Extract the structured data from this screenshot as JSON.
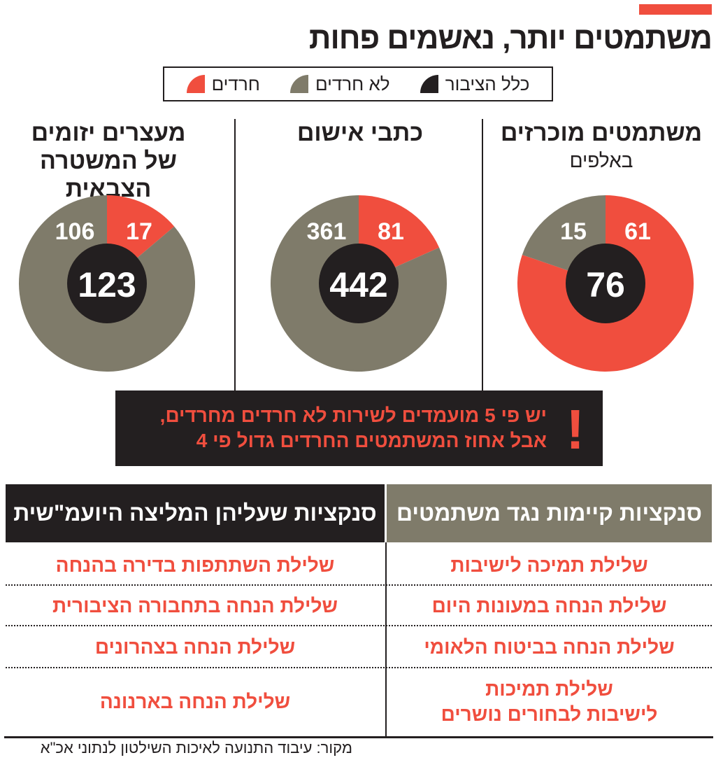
{
  "title": "משתמטים יותר, נאשמים פחות",
  "legend": [
    {
      "label": "חרדים",
      "color": "#f04e3e"
    },
    {
      "label": "לא חרדים",
      "color": "#7f7b6a"
    },
    {
      "label": "כלל הציבור",
      "color": "#231f20"
    }
  ],
  "columns": [
    {
      "title": "משתמטים מוכרזים",
      "subtitle": "באלפים"
    },
    {
      "title": "כתבי אישום",
      "subtitle": ""
    },
    {
      "title": "מעצרים יזומים של המשטרה הצבאית",
      "subtitle": ""
    }
  ],
  "chart_data": [
    {
      "type": "pie",
      "variant": "donut",
      "title": "משתמטים מוכרזים",
      "unit": "באלפים",
      "categories": [
        "חרדים",
        "לא חרדים"
      ],
      "values": [
        61,
        15
      ],
      "total": 76,
      "colors": [
        "#f04e3e",
        "#7f7b6a"
      ],
      "center_color": "#231f20"
    },
    {
      "type": "pie",
      "variant": "donut",
      "title": "כתבי אישום",
      "categories": [
        "חרדים",
        "לא חרדים"
      ],
      "values": [
        81,
        361
      ],
      "total": 442,
      "colors": [
        "#f04e3e",
        "#7f7b6a"
      ],
      "center_color": "#231f20"
    },
    {
      "type": "pie",
      "variant": "donut",
      "title": "מעצרים יזומים של המשטרה הצבאית",
      "categories": [
        "חרדים",
        "לא חרדים"
      ],
      "values": [
        17,
        106
      ],
      "total": 123,
      "colors": [
        "#f04e3e",
        "#7f7b6a"
      ],
      "center_color": "#231f20"
    }
  ],
  "alert": {
    "mark": "!",
    "line1": "יש פי 5 מועמדים לשירות לא חרדים מחרדים,",
    "line2": "אבל אחוז המשתמטים החרדים גדול פי 4"
  },
  "table": {
    "headers": [
      "סנקציות קיימות נגד משתמטים",
      "סנקציות שעליהן המליצה היועמ\"שית"
    ],
    "rows": [
      [
        "שלילת תמיכה לישיבות",
        "שלילת השתתפות בדירה בהנחה"
      ],
      [
        "שלילת הנחה במעונות היום",
        "שלילת הנחה בתחבורה הציבורית"
      ],
      [
        "שלילת הנחה בביטוח הלאומי",
        "שלילת הנחה בצהרונים"
      ],
      [
        "שלילת תמיכות\nלישיבות לבחורים נושרים",
        "שלילת הנחה בארנונה"
      ]
    ]
  },
  "source": "מקור: עיבוד התנועה לאיכות השילטון לנתוני אכ\"א"
}
